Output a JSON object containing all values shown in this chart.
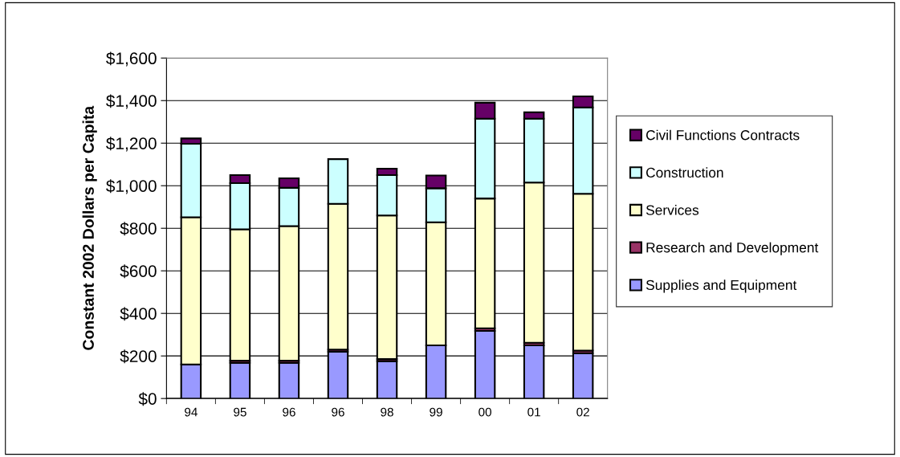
{
  "chart_data": {
    "type": "bar",
    "stacked": true,
    "ylabel": "Constant 2002 Dollars per Capita",
    "categories": [
      "94",
      "95",
      "96",
      "96",
      "98",
      "99",
      "00",
      "01",
      "02"
    ],
    "series": [
      {
        "name": "Supplies and Equipment",
        "color": "#9999ff",
        "values": [
          160,
          168,
          168,
          220,
          175,
          250,
          318,
          250,
          213
        ]
      },
      {
        "name": "Research and Development",
        "color": "#993366",
        "values": [
          null,
          10,
          10,
          10,
          10,
          null,
          12,
          12,
          12
        ]
      },
      {
        "name": "Services",
        "color": "#ffffcc",
        "values": [
          692,
          617,
          632,
          685,
          675,
          578,
          610,
          753,
          737
        ]
      },
      {
        "name": "Construction",
        "color": "#ccffff",
        "values": [
          345,
          217,
          180,
          210,
          190,
          160,
          375,
          300,
          406
        ]
      },
      {
        "name": "Civil Functions Contracts",
        "color": "#660066",
        "values": [
          25,
          38,
          45,
          null,
          30,
          60,
          75,
          30,
          52
        ]
      }
    ],
    "ylim": [
      0,
      1600
    ],
    "yticks": [
      {
        "value": 0,
        "label": "$0"
      },
      {
        "value": 200,
        "label": "$200"
      },
      {
        "value": 400,
        "label": "$400"
      },
      {
        "value": 600,
        "label": "$600"
      },
      {
        "value": 800,
        "label": "$800"
      },
      {
        "value": 1000,
        "label": "$1,000"
      },
      {
        "value": 1200,
        "label": "$1,200"
      },
      {
        "value": 1400,
        "label": "$1,400"
      },
      {
        "value": 1600,
        "label": "$1,600"
      }
    ],
    "grid": "y",
    "legend": "right"
  }
}
